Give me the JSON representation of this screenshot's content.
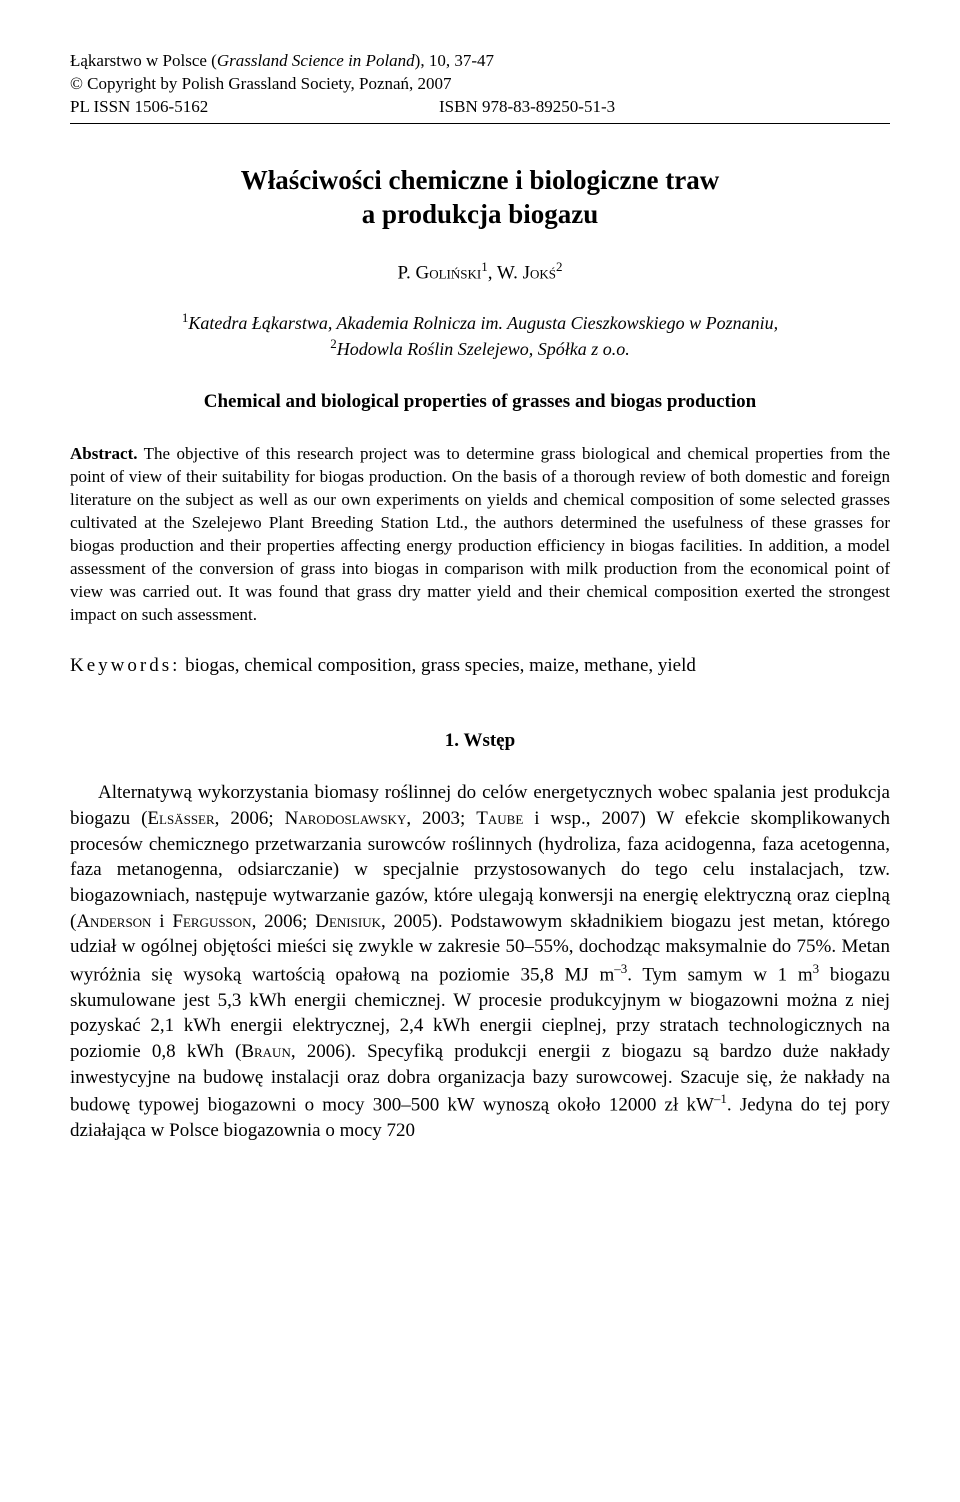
{
  "header": {
    "journal_plain_prefix": "Łąkarstwo w Polsce (",
    "journal_italic": "Grassland Science in Poland",
    "journal_plain_suffix": "), 10, 37-47",
    "copyright": "© Copyright by Polish Grassland Society, Poznań, 2007",
    "issn": "PL ISSN 1506-5162",
    "isbn": "ISBN 978-83-89250-51-3"
  },
  "title": {
    "line1": "Właściwości chemiczne i biologiczne traw",
    "line2": "a produkcja biogazu"
  },
  "authors": {
    "a1_initial": "P. ",
    "a1_surname": "Goliński",
    "a1_sup": "1",
    "sep": ", ",
    "a2_initial": "W. ",
    "a2_surname": "Jokś",
    "a2_sup": "2"
  },
  "affiliations": {
    "aff1_sup": "1",
    "aff1": "Katedra Łąkarstwa, Akademia Rolnicza im. Augusta Cieszkowskiego w Poznaniu,",
    "aff2_sup": "2",
    "aff2": "Hodowla Roślin Szelejewo, Spółka z o.o."
  },
  "english_title": "Chemical and biological properties of grasses and biogas production",
  "abstract": {
    "label": "Abstract.",
    "text": " The objective of this research project was to determine grass biological and chemical properties from the point of view of their suitability for biogas production. On the basis of a thorough review of both domestic and foreign literature on the subject as well as our own experiments on yields and chemical composition of some selected grasses cultivated at the Szelejewo Plant Breeding Station Ltd., the authors determined the usefulness of these grasses for biogas production and their properties affecting energy production efficiency in biogas facilities. In addition, a model assessment of the conversion of grass into biogas in comparison with milk production from the economical point of view was carried out. It was found that grass dry matter yield and their chemical composition exerted the strongest impact on such assessment."
  },
  "keywords": {
    "label": "Keywords:",
    "text": " biogas, chemical composition, grass species, maize, methane, yield"
  },
  "section1": {
    "heading": "1. Wstęp",
    "p1_a": "Alternatywą wykorzystania biomasy roślinnej do celów energetycznych wobec spalania jest produkcja biogazu (",
    "p1_ref1": "Elsässer",
    "p1_b": ", 2006; ",
    "p1_ref2": "Narodoslawsky",
    "p1_c": ", 2003; ",
    "p1_ref3": "Taube",
    "p1_d": " i wsp., 2007) W efekcie skomplikowanych procesów chemicznego przetwarzania surowców roślinnych (hydroliza, faza acidogenna, faza acetogenna, faza metanogenna, odsiarczanie) w specjalnie przystosowanych do tego celu instalacjach, tzw. biogazowniach, następuje wytwarzanie gazów, które ulegają konwersji na energię elektryczną oraz cieplną (",
    "p1_ref4": "Anderson",
    "p1_e": " i ",
    "p1_ref5": "Fergusson",
    "p1_f": ", 2006; ",
    "p1_ref6": "Denisiuk",
    "p1_g": ", 2005). Podstawowym składnikiem biogazu jest metan, którego udział w ogólnej objętości mieści się zwykle w zakresie 50–55%, dochodząc maksymalnie do 75%. Metan wyróżnia się wysoką wartością opałową na poziomie 35,8 MJ m",
    "p1_sup1": "–3",
    "p1_h": ". Tym samym w 1 m",
    "p1_sup2": "3",
    "p1_i": " biogazu skumulowane jest 5,3 kWh energii chemicznej. W procesie produkcyjnym w biogazowni można z niej pozyskać 2,1 kWh energii elektrycznej, 2,4 kWh energii cieplnej, przy stratach technologicznych na poziomie 0,8 kWh (",
    "p1_ref7": "Braun",
    "p1_j": ", 2006). Specyfiką produkcji energii z biogazu są bardzo duże nakłady inwestycyjne na budowę instalacji oraz dobra organizacja bazy surowcowej. Szacuje się, że nakłady na budowę typowej biogazowni o mocy 300–500 kW wynoszą około 12000 zł kW",
    "p1_sup3": "–1",
    "p1_k": ". Jedyna do tej pory działająca w Polsce biogazownia o mocy 720"
  }
}
